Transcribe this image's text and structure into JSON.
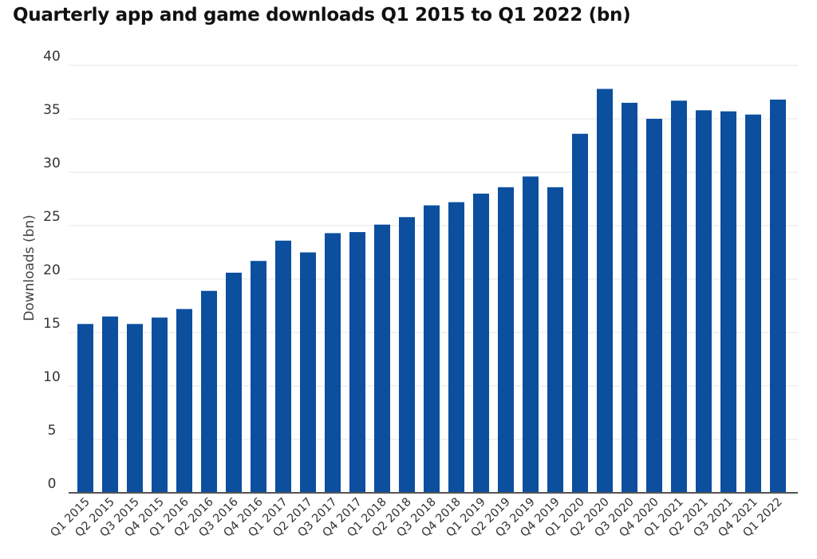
{
  "colors": {
    "bar": "#0b4f9e",
    "grid": "#e6e6e6",
    "axis": "#555555"
  },
  "chart_data": {
    "type": "bar",
    "title": "Quarterly app and game downloads Q1 2015 to Q1 2022 (bn)",
    "xlabel": "",
    "ylabel": "Downloads (bn)",
    "ylim": [
      0,
      40
    ],
    "yticks": [
      0,
      5,
      10,
      15,
      20,
      25,
      30,
      35,
      40
    ],
    "grid": true,
    "legend": "none",
    "categories": [
      "Q1 2015",
      "Q2 2015",
      "Q3 2015",
      "Q4 2015",
      "Q1 2016",
      "Q2 2016",
      "Q3 2016",
      "Q4 2016",
      "Q1 2017",
      "Q2 2017",
      "Q3 2017",
      "Q4 2017",
      "Q1 2018",
      "Q2 2018",
      "Q3 2018",
      "Q4 2018",
      "Q1 2019",
      "Q2 2019",
      "Q3 2019",
      "Q4 2019",
      "Q1 2020",
      "Q2 2020",
      "Q3 2020",
      "Q4 2020",
      "Q1 2021",
      "Q2 2021",
      "Q3 2021",
      "Q4 2021",
      "Q1 2022"
    ],
    "values": [
      15.8,
      16.5,
      15.8,
      16.4,
      17.2,
      18.9,
      20.6,
      21.7,
      23.6,
      22.5,
      24.3,
      24.4,
      25.1,
      25.8,
      26.9,
      27.2,
      28.0,
      28.6,
      29.6,
      28.6,
      33.6,
      37.8,
      36.5,
      35.0,
      36.7,
      35.8,
      35.7,
      35.4,
      36.8
    ]
  }
}
